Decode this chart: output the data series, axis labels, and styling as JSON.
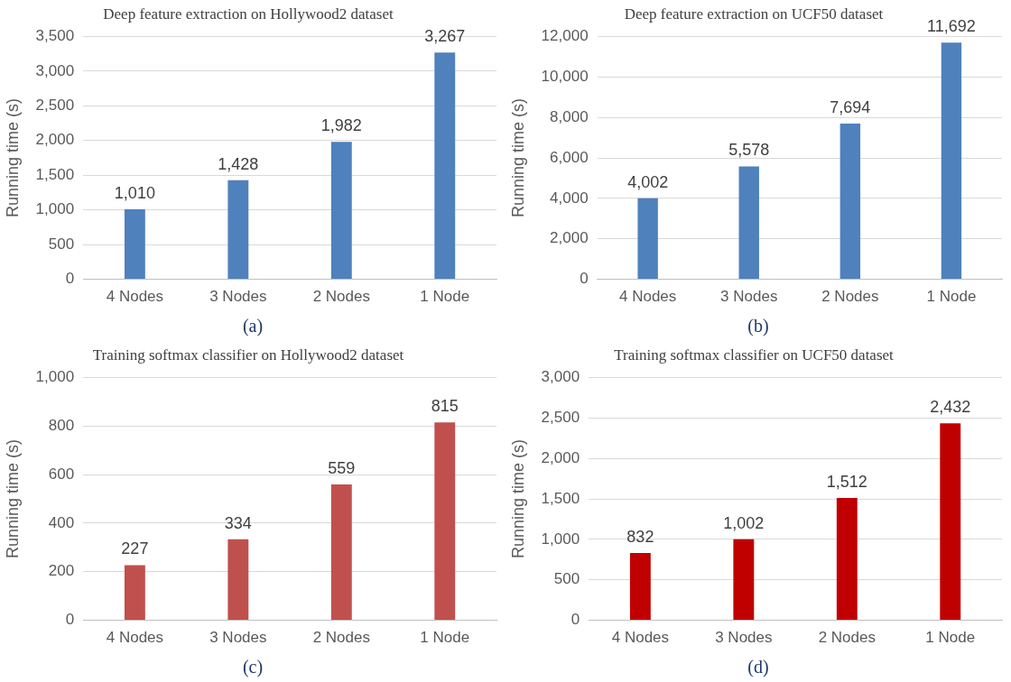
{
  "chart_data": [
    {
      "type": "bar",
      "title": "Deep feature extraction on Hollywood2 dataset",
      "ylabel": "Running time (s)",
      "categories": [
        "4 Nodes",
        "3 Nodes",
        "2 Nodes",
        "1 Node"
      ],
      "values": [
        1010,
        1428,
        1982,
        3267
      ],
      "value_labels": [
        "1,010",
        "1,428",
        "1,982",
        "3,267"
      ],
      "color": "#4f81bd",
      "ylim": [
        0,
        3500
      ],
      "yticks": [
        0,
        500,
        {
          "value": 1000,
          "label": "1,000"
        },
        {
          "value": 1500,
          "label": "1,500"
        },
        {
          "value": 2000,
          "label": "2,000"
        },
        {
          "value": 2500,
          "label": "2,500"
        },
        {
          "value": 3000,
          "label": "3,000"
        },
        {
          "value": 3500,
          "label": "3,500"
        }
      ],
      "grid": "y",
      "legend": false,
      "annotations": [
        "(a)"
      ]
    },
    {
      "type": "bar",
      "title": "Deep feature extraction on UCF50 dataset",
      "ylabel": "Running time (s)",
      "categories": [
        "4 Nodes",
        "3 Nodes",
        "2 Nodes",
        "1 Node"
      ],
      "values": [
        4002,
        5578,
        7694,
        11692
      ],
      "value_labels": [
        "4,002",
        "5,578",
        "7,694",
        "11,692"
      ],
      "color": "#4f81bd",
      "ylim": [
        0,
        12000
      ],
      "yticks": [
        0,
        {
          "value": 2000,
          "label": "2,000"
        },
        {
          "value": 4000,
          "label": "4,000"
        },
        {
          "value": 6000,
          "label": "6,000"
        },
        {
          "value": 8000,
          "label": "8,000"
        },
        {
          "value": 10000,
          "label": "10,000"
        },
        {
          "value": 12000,
          "label": "12,000"
        }
      ],
      "grid": "y",
      "legend": false,
      "annotations": [
        "(b)"
      ]
    },
    {
      "type": "bar",
      "title": "Training softmax classifier on Hollywood2 dataset",
      "ylabel": "Running time (s)",
      "categories": [
        "4 Nodes",
        "3 Nodes",
        "2 Nodes",
        "1 Node"
      ],
      "values": [
        227,
        334,
        559,
        815
      ],
      "value_labels": [
        "227",
        "334",
        "559",
        "815"
      ],
      "color": "#c0504d",
      "ylim": [
        0,
        1000
      ],
      "yticks": [
        0,
        200,
        400,
        600,
        800,
        {
          "value": 1000,
          "label": "1,000"
        }
      ],
      "grid": "y",
      "legend": false,
      "annotations": [
        "(c)"
      ]
    },
    {
      "type": "bar",
      "title": "Training softmax classifier on UCF50 dataset",
      "ylabel": "Running time (s)",
      "categories": [
        "4 Nodes",
        "3 Nodes",
        "2 Nodes",
        "1 Node"
      ],
      "values": [
        832,
        1002,
        1512,
        2432
      ],
      "value_labels": [
        "832",
        "1,002",
        "1,512",
        "2,432"
      ],
      "color": "#c00000",
      "ylim": [
        0,
        3000
      ],
      "yticks": [
        0,
        500,
        {
          "value": 1000,
          "label": "1,000"
        },
        {
          "value": 1500,
          "label": "1,500"
        },
        {
          "value": 2000,
          "label": "2,000"
        },
        {
          "value": 2500,
          "label": "2,500"
        },
        {
          "value": 3000,
          "label": "3,000"
        }
      ],
      "grid": "y",
      "legend": false,
      "annotations": [
        "(d)"
      ]
    }
  ]
}
